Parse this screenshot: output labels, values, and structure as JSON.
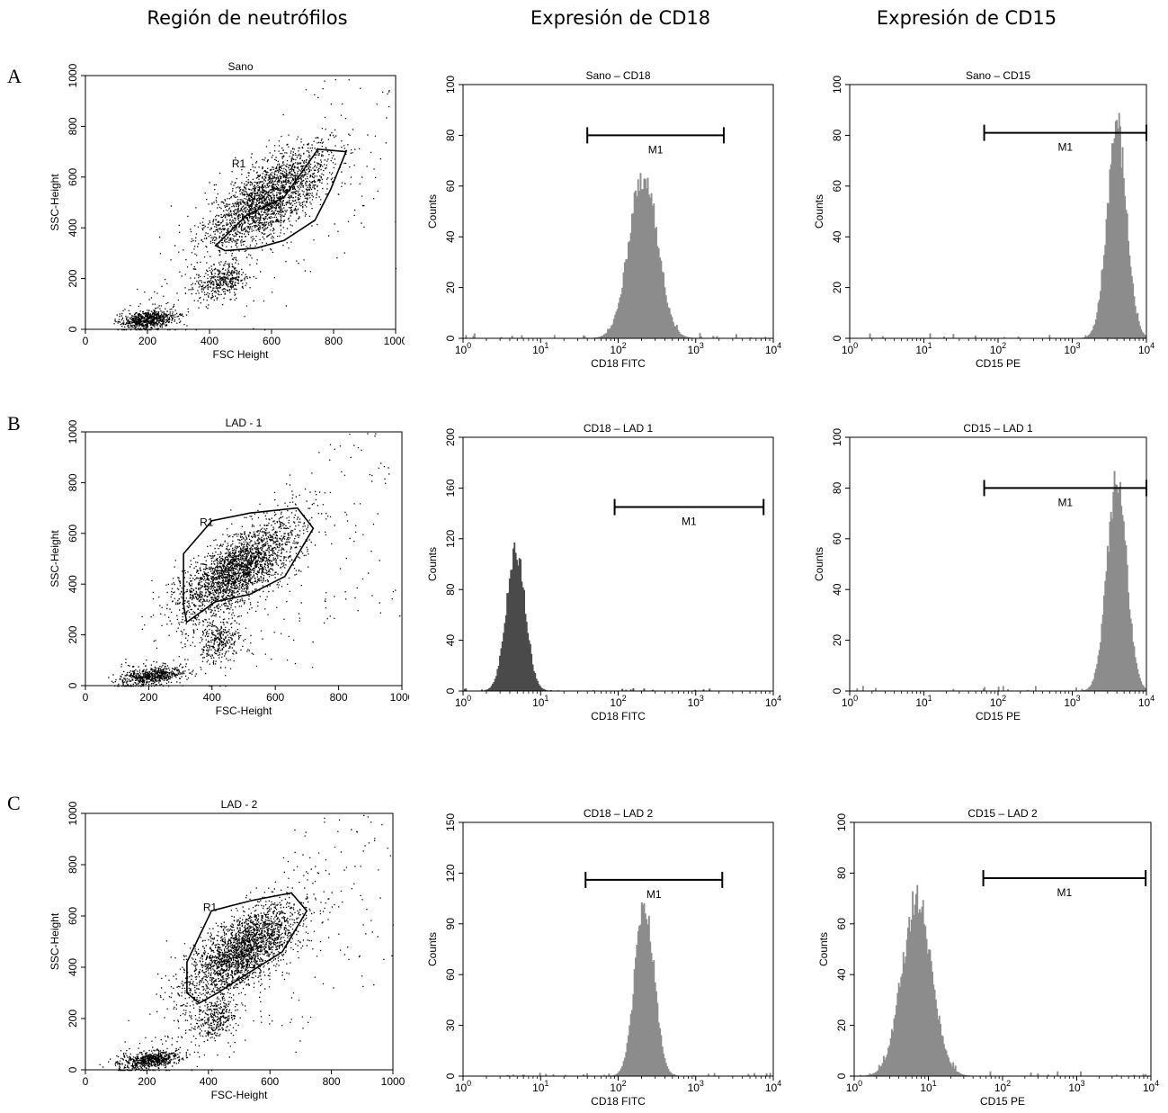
{
  "column_titles": [
    "Región de neutrófilos",
    "Expresión de CD18",
    "Expresión de CD15"
  ],
  "row_labels": [
    "A",
    "B",
    "C"
  ],
  "colors": {
    "histogram_light": "#8c8c8c",
    "histogram_dark": "#4a4a4a",
    "dots": "#000000",
    "frame": "#000000"
  },
  "chart_data": [
    {
      "id": "A-scatter",
      "type": "scatter",
      "title": "Sano",
      "xlabel": "FSC Height",
      "ylabel": "SSC-Height",
      "xlim": [
        0,
        1000
      ],
      "ylim": [
        0,
        1000
      ],
      "xticks": [
        "0",
        "200",
        "400",
        "600",
        "800",
        "1000"
      ],
      "yticks": [
        "0",
        "200",
        "400",
        "600",
        "800",
        "1000"
      ],
      "gate_label": "R1",
      "gate_polygon": [
        [
          420,
          330
        ],
        [
          520,
          450
        ],
        [
          640,
          520
        ],
        [
          750,
          710
        ],
        [
          840,
          700
        ],
        [
          790,
          550
        ],
        [
          740,
          430
        ],
        [
          640,
          350
        ],
        [
          550,
          320
        ],
        [
          450,
          310
        ]
      ],
      "clusters": [
        {
          "cx": 590,
          "cy": 520,
          "sx": 100,
          "sy": 100,
          "rho": 0.7,
          "n": 2200
        },
        {
          "cx": 440,
          "cy": 190,
          "sx": 45,
          "sy": 35,
          "rho": 0.3,
          "n": 380
        },
        {
          "cx": 200,
          "cy": 40,
          "sx": 45,
          "sy": 18,
          "rho": 0.3,
          "n": 700
        }
      ],
      "background_points": 260
    },
    {
      "id": "A-cd18",
      "type": "histogram",
      "title": "Sano – CD18",
      "xlabel": "CD18 FITC",
      "ylabel": "Counts",
      "xscale": "log",
      "xlim": [
        1,
        10000
      ],
      "ylim": [
        0,
        100
      ],
      "xticks": [
        "10^0",
        "10^1",
        "10^2",
        "10^3",
        "10^4"
      ],
      "yticks": [
        "0",
        "20",
        "40",
        "60",
        "80",
        "100"
      ],
      "peak_center": 210,
      "peak_height": 65,
      "peak_width_decades": 0.18,
      "marker": {
        "label": "M1",
        "from": 40,
        "to": 2300,
        "y": 80
      },
      "shade": "light"
    },
    {
      "id": "A-cd15",
      "type": "histogram",
      "title": "Sano – CD15",
      "xlabel": "CD15 PE",
      "ylabel": "Counts",
      "xscale": "log",
      "xlim": [
        1,
        10000
      ],
      "ylim": [
        0,
        100
      ],
      "xticks": [
        "10^0",
        "10^1",
        "10^2",
        "10^3",
        "10^4"
      ],
      "yticks": [
        "0",
        "20",
        "40",
        "60",
        "80",
        "100"
      ],
      "peak_center": 4000,
      "peak_height": 83,
      "peak_width_decades": 0.13,
      "marker": {
        "label": "M1",
        "from": 65,
        "to": 10000,
        "y": 81
      },
      "shade": "light"
    },
    {
      "id": "B-scatter",
      "type": "scatter",
      "title": "LAD - 1",
      "xlabel": "FSC-Height",
      "ylabel": "SSC-Height",
      "xlim": [
        0,
        1000
      ],
      "ylim": [
        0,
        1000
      ],
      "xticks": [
        "0",
        "200",
        "400",
        "600",
        "800",
        "1000"
      ],
      "yticks": [
        "0",
        "200",
        "400",
        "600",
        "800",
        "1000"
      ],
      "gate_label": "R1",
      "gate_polygon": [
        [
          320,
          250
        ],
        [
          410,
          330
        ],
        [
          520,
          360
        ],
        [
          630,
          430
        ],
        [
          720,
          620
        ],
        [
          670,
          700
        ],
        [
          520,
          680
        ],
        [
          400,
          650
        ],
        [
          310,
          520
        ],
        [
          310,
          320
        ]
      ],
      "clusters": [
        {
          "cx": 480,
          "cy": 460,
          "sx": 95,
          "sy": 95,
          "rho": 0.7,
          "n": 2400
        },
        {
          "cx": 420,
          "cy": 180,
          "sx": 35,
          "sy": 45,
          "rho": 0.2,
          "n": 320
        },
        {
          "cx": 210,
          "cy": 40,
          "sx": 50,
          "sy": 18,
          "rho": 0.4,
          "n": 600
        }
      ],
      "background_points": 300
    },
    {
      "id": "B-cd18",
      "type": "histogram",
      "title": "CD18 – LAD 1",
      "xlabel": "CD18 FITC",
      "ylabel": "Counts",
      "xscale": "log",
      "xlim": [
        1,
        10000
      ],
      "ylim": [
        0,
        200
      ],
      "xticks": [
        "10^0",
        "10^1",
        "10^2",
        "10^3",
        "10^4"
      ],
      "yticks": [
        "0",
        "40",
        "80",
        "120",
        "160",
        "200"
      ],
      "peak_center": 4.8,
      "peak_height": 112,
      "peak_width_decades": 0.12,
      "marker": {
        "label": "M1",
        "from": 90,
        "to": 7500,
        "y": 145
      },
      "shade": "dark"
    },
    {
      "id": "B-cd15",
      "type": "histogram",
      "title": "CD15 – LAD 1",
      "xlabel": "CD15 PE",
      "ylabel": "Counts",
      "xscale": "log",
      "xlim": [
        1,
        10000
      ],
      "ylim": [
        0,
        100
      ],
      "xticks": [
        "10^0",
        "10^1",
        "10^2",
        "10^3",
        "10^4"
      ],
      "yticks": [
        "0",
        "20",
        "40",
        "60",
        "80",
        "100"
      ],
      "peak_center": 4000,
      "peak_height": 83,
      "peak_width_decades": 0.13,
      "marker": {
        "label": "M1",
        "from": 65,
        "to": 10000,
        "y": 80
      },
      "shade": "light"
    },
    {
      "id": "C-scatter",
      "type": "scatter",
      "title": "LAD - 2",
      "xlabel": "FSC-Height",
      "ylabel": "SSC-Height",
      "xlim": [
        0,
        1000
      ],
      "ylim": [
        0,
        1000
      ],
      "xticks": [
        "0",
        "200",
        "400",
        "600",
        "800",
        "1000"
      ],
      "yticks": [
        "0",
        "200",
        "400",
        "600",
        "800",
        "1000"
      ],
      "gate_label": "R1",
      "gate_polygon": [
        [
          370,
          260
        ],
        [
          430,
          300
        ],
        [
          520,
          370
        ],
        [
          640,
          460
        ],
        [
          720,
          620
        ],
        [
          670,
          690
        ],
        [
          540,
          660
        ],
        [
          410,
          620
        ],
        [
          330,
          420
        ],
        [
          330,
          300
        ]
      ],
      "clusters": [
        {
          "cx": 510,
          "cy": 470,
          "sx": 95,
          "sy": 95,
          "rho": 0.7,
          "n": 2400
        },
        {
          "cx": 420,
          "cy": 200,
          "sx": 35,
          "sy": 40,
          "rho": 0.2,
          "n": 320
        },
        {
          "cx": 210,
          "cy": 40,
          "sx": 50,
          "sy": 18,
          "rho": 0.4,
          "n": 650
        }
      ],
      "background_points": 300
    },
    {
      "id": "C-cd18",
      "type": "histogram",
      "title": "CD18 – LAD 2",
      "xlabel": "CD18 FITC",
      "ylabel": "Counts",
      "xscale": "log",
      "xlim": [
        1,
        10000
      ],
      "ylim": [
        0,
        150
      ],
      "xticks": [
        "10^0",
        "10^1",
        "10^2",
        "10^3",
        "10^4"
      ],
      "yticks": [
        "0",
        "30",
        "60",
        "90",
        "120",
        "150"
      ],
      "peak_center": 220,
      "peak_height": 105,
      "peak_width_decades": 0.12,
      "marker": {
        "label": "M1",
        "from": 38,
        "to": 2200,
        "y": 116
      },
      "shade": "light"
    },
    {
      "id": "C-cd15",
      "type": "histogram",
      "title": "CD15 – LAD 2",
      "xlabel": "CD15 PE",
      "ylabel": "Counts",
      "xscale": "log",
      "xlim": [
        1,
        10000
      ],
      "ylim": [
        0,
        100
      ],
      "xticks": [
        "10^0",
        "10^1",
        "10^2",
        "10^3",
        "10^4"
      ],
      "yticks": [
        "0",
        "20",
        "40",
        "60",
        "80",
        "100"
      ],
      "peak_center": 7,
      "peak_height": 69,
      "peak_width_decades": 0.2,
      "marker": {
        "label": "M1",
        "from": 55,
        "to": 8500,
        "y": 78
      },
      "shade": "light"
    }
  ]
}
